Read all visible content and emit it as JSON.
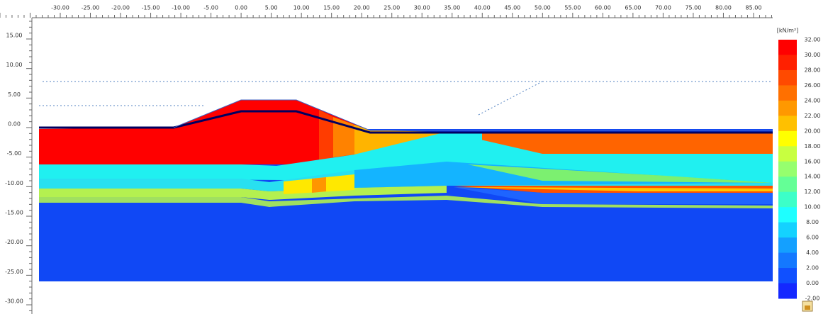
{
  "x_axis": {
    "labels": [
      "-30.00",
      "-25.00",
      "-20.00",
      "-15.00",
      "-10.00",
      "-5.00",
      "0.00",
      "5.00",
      "10.00",
      "15.00",
      "20.00",
      "25.00",
      "30.00",
      "35.00",
      "40.00",
      "45.00",
      "50.00",
      "55.00",
      "60.00",
      "65.00",
      "70.00",
      "75.00",
      "80.00",
      "85.00"
    ]
  },
  "y_axis": {
    "labels": [
      "15.00",
      "10.00",
      "5.00",
      "0.00",
      "-5.00",
      "-10.00",
      "-15.00",
      "-20.00",
      "-25.00",
      "-30.00"
    ]
  },
  "legend": {
    "unit": "[kN/m²]",
    "labels": [
      "32.00",
      "30.00",
      "28.00",
      "26.00",
      "24.00",
      "22.00",
      "20.00",
      "18.00",
      "16.00",
      "14.00",
      "12.00",
      "10.00",
      "8.00",
      "6.00",
      "4.00",
      "2.00",
      "0.00",
      "-2.00"
    ]
  }
}
